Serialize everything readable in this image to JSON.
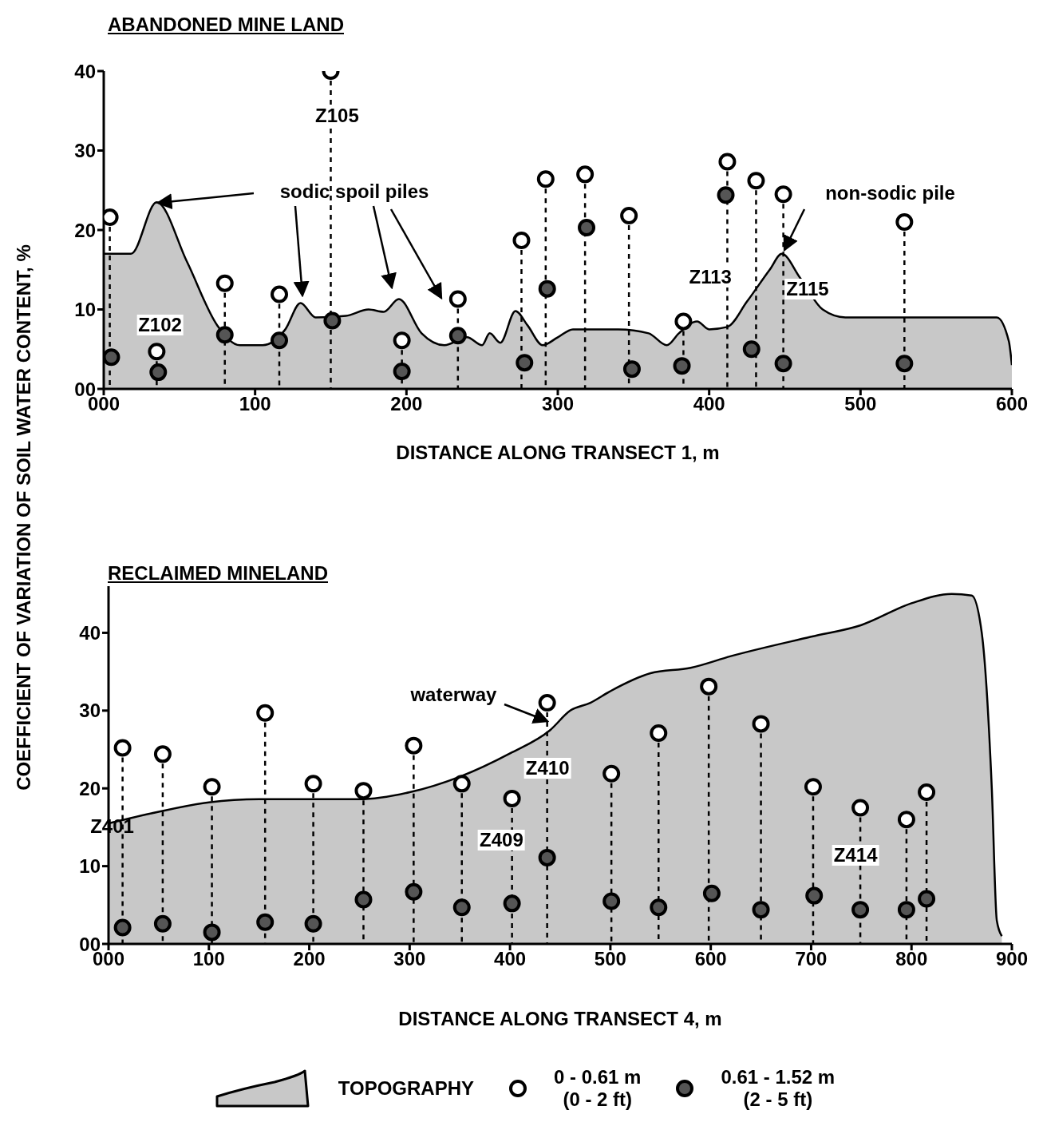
{
  "chart_data": [
    {
      "type": "lollipop",
      "title": "ABANDONED MINE LAND",
      "xlabel": "DISTANCE ALONG TRANSECT 1,  m",
      "ylabel": "COEFFICIENT OF VARIATION OF SOIL WATER CONTENT, %",
      "xlim": [
        0,
        600
      ],
      "xticks": [
        {
          "value": 0,
          "label": "000"
        },
        100,
        200,
        300,
        400,
        500,
        600
      ],
      "ylim": [
        0,
        40
      ],
      "yticks": [
        {
          "value": 0,
          "label": "00"
        },
        10,
        20,
        30,
        40
      ],
      "series": [
        {
          "type": "area",
          "color": "#c8c8c8",
          "x": [
            0,
            18,
            35,
            55,
            75,
            90,
            105,
            120,
            130,
            140,
            160,
            175,
            185,
            195,
            210,
            225,
            240,
            250,
            255,
            262,
            272,
            280,
            290,
            300,
            310,
            340,
            360,
            372,
            380,
            392,
            400,
            412,
            425,
            440,
            448,
            460,
            475,
            490,
            590,
            598,
            600
          ],
          "values": [
            17,
            17,
            23.5,
            16,
            8,
            5.5,
            5.5,
            7.5,
            10.8,
            9,
            9.2,
            10,
            9.7,
            11.3,
            7,
            5.5,
            6.5,
            5.5,
            7,
            5.8,
            9.8,
            8,
            5.5,
            6.5,
            7.5,
            7.5,
            7,
            5.5,
            7,
            8.5,
            7.5,
            7.8,
            11,
            15,
            17,
            14,
            10,
            9,
            9,
            6,
            3
          ]
        },
        {
          "color": "#ffffff",
          "marker": "circle",
          "line_style": "dashed",
          "x": [
            4,
            35,
            80,
            116,
            150,
            197,
            234,
            276,
            292,
            318,
            347,
            383,
            412,
            431,
            449,
            529
          ],
          "values": [
            21.6,
            4.7,
            13.3,
            11.9,
            40,
            6.1,
            11.3,
            18.7,
            26.4,
            27,
            21.8,
            8.5,
            28.6,
            26.2,
            24.5,
            21
          ]
        },
        {
          "type": "scatter",
          "color": "#555555",
          "marker": "circle",
          "x": [
            5,
            36,
            80,
            116,
            151,
            197,
            234,
            278,
            293,
            319,
            349,
            382,
            411,
            428,
            449,
            529
          ],
          "values": [
            4,
            2.1,
            6.8,
            6.1,
            8.6,
            2.2,
            6.7,
            3.3,
            12.6,
            20.3,
            2.5,
            2.9,
            24.4,
            5,
            3.2,
            3.2
          ]
        }
      ],
      "annotations": [
        "Z105",
        "Z102",
        "Z113",
        "Z115",
        "sodic spoil piles",
        "non-sodic pile"
      ]
    },
    {
      "type": "lollipop",
      "title": "RECLAIMED MINELAND",
      "xlabel": "DISTANCE ALONG TRANSECT 4,  m",
      "xlim": [
        0,
        900
      ],
      "xticks": [
        {
          "value": 0,
          "label": "000"
        },
        100,
        200,
        300,
        400,
        500,
        600,
        700,
        800,
        900
      ],
      "ylim": [
        0,
        46
      ],
      "yticks": [
        {
          "value": 0,
          "label": "00"
        },
        10,
        20,
        30,
        40
      ],
      "legend": "bottom",
      "series": [
        {
          "type": "area",
          "name": "TOPOGRAPHY",
          "color": "#c8c8c8",
          "x": [
            0,
            50,
            100,
            150,
            200,
            250,
            300,
            350,
            400,
            440,
            460,
            480,
            500,
            540,
            580,
            620,
            700,
            750,
            800,
            840,
            860,
            870,
            880,
            885,
            890
          ],
          "values": [
            15.5,
            17,
            18.2,
            18.6,
            18.6,
            18.6,
            19.5,
            21.5,
            24.5,
            27.5,
            30,
            31,
            32.5,
            34.8,
            35.5,
            37,
            39.5,
            41,
            43.8,
            45,
            44.8,
            40,
            20,
            3,
            1
          ]
        },
        {
          "name": "0 - 0.61 m\n(0 - 2 ft)",
          "color": "#ffffff",
          "marker": "circle",
          "line_style": "dashed",
          "x": [
            14,
            54,
            103,
            156,
            204,
            254,
            304,
            352,
            402,
            437,
            501,
            548,
            598,
            650,
            702,
            749,
            795,
            815
          ],
          "values": [
            25.2,
            24.4,
            20.2,
            29.7,
            20.6,
            19.7,
            25.5,
            20.6,
            18.7,
            31,
            21.9,
            27.1,
            33.1,
            28.3,
            20.2,
            17.5,
            16,
            19.5
          ]
        },
        {
          "type": "scatter",
          "name": "0.61 - 1.52 m\n(2 - 5 ft)",
          "color": "#555555",
          "marker": "circle",
          "x": [
            14,
            54,
            103,
            156,
            204,
            254,
            304,
            352,
            402,
            437,
            501,
            548,
            601,
            650,
            703,
            749,
            795,
            815
          ],
          "values": [
            2.1,
            2.6,
            1.5,
            2.8,
            2.6,
            5.7,
            6.7,
            4.7,
            5.2,
            11.1,
            5.5,
            4.7,
            6.5,
            4.4,
            6.2,
            4.4,
            4.4,
            5.8
          ]
        }
      ],
      "annotations": [
        "Z401",
        "Z409",
        "Z410",
        "Z414",
        "waterway"
      ]
    }
  ]
}
